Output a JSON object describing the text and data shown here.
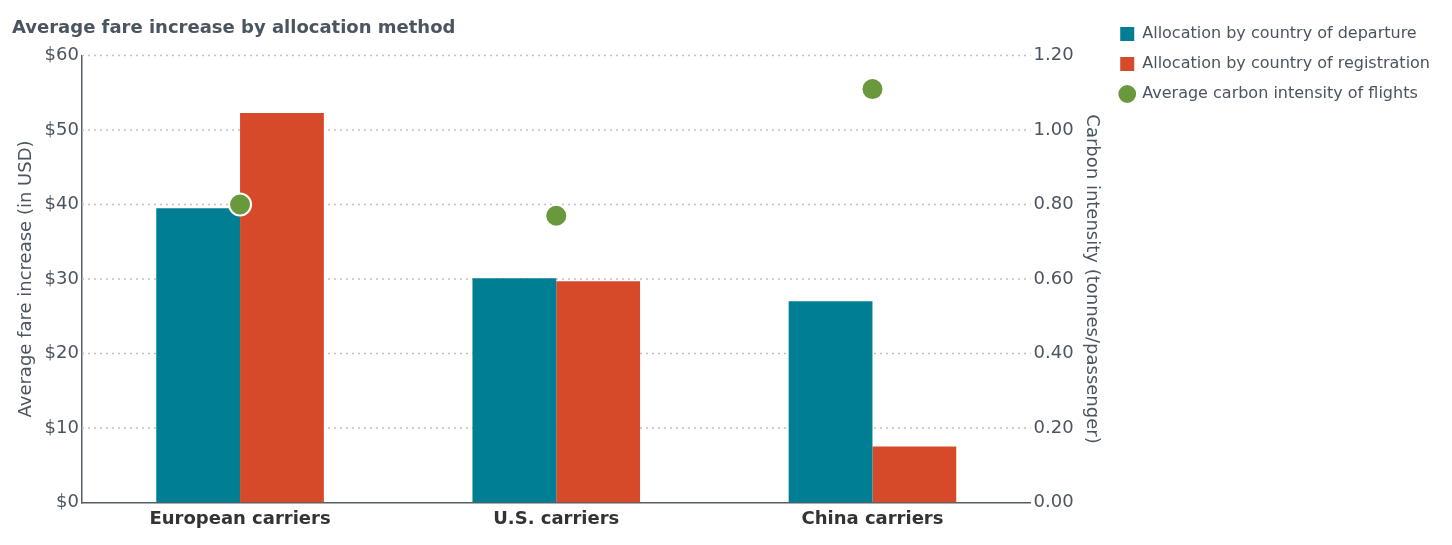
{
  "chart_data": {
    "type": "bar",
    "title": "Average fare increase by allocation method",
    "ylabel": "Average fare increase (in USD)",
    "y2label": "Carbon intensity (tonnes/passenger)",
    "categories": [
      "European carriers",
      "U.S. carriers",
      "China carriers"
    ],
    "series": [
      {
        "name": "Allocation by country of departure",
        "color": "#007e93",
        "values": [
          39.5,
          30.1,
          27.0
        ]
      },
      {
        "name": "Allocation by country of registration",
        "color": "#d64a29",
        "values": [
          52.3,
          29.7,
          7.5
        ]
      },
      {
        "name": "Average carbon intensity of flights",
        "type": "scatter",
        "axis": "y2",
        "marker": "circle",
        "color": "#6a983c",
        "x": [
          "European carriers",
          "U.S. carriers",
          "China carriers"
        ],
        "values": [
          0.8,
          0.77,
          1.11
        ]
      }
    ],
    "ylim": [
      0,
      60
    ],
    "yticks": [
      {
        "value": 0,
        "label": "$0"
      },
      {
        "value": 10,
        "label": "$10"
      },
      {
        "value": 20,
        "label": "$20"
      },
      {
        "value": 30,
        "label": "$30"
      },
      {
        "value": 40,
        "label": "$40"
      },
      {
        "value": 50,
        "label": "$50"
      },
      {
        "value": 60,
        "label": "$60"
      }
    ],
    "y2lim": [
      0,
      1.2
    ],
    "y2ticks": [
      {
        "value": 0,
        "label": "0.00"
      },
      {
        "value": 0.2,
        "label": "0.20"
      },
      {
        "value": 0.4,
        "label": "0.40"
      },
      {
        "value": 0.6,
        "label": "0.60"
      },
      {
        "value": 0.8,
        "label": "0.80"
      },
      {
        "value": 1.0,
        "label": "1.00"
      },
      {
        "value": 1.2,
        "label": "1.20"
      }
    ],
    "grid": "y",
    "legend": "top right"
  }
}
